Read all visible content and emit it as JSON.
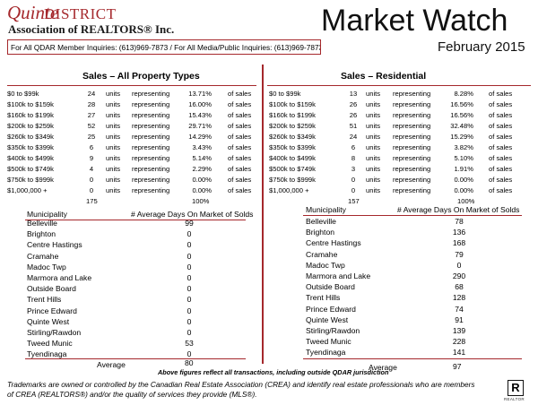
{
  "header": {
    "logo_quinte": "Quinte",
    "logo_district": "DISTRICT",
    "association": "Association of REALTORS® Inc.",
    "title": "Market Watch",
    "subtitle": "February 2015",
    "inquiry": "For All QDAR Member Inquiries: (613)969-7873 / For All Media/Public Inquiries: (613)969-7873"
  },
  "all_property": {
    "title": "Sales – All Property Types",
    "rows": [
      {
        "range": "$0 to $99k",
        "count": "24",
        "units": "units",
        "rep": "representing",
        "pct": "13.71%",
        "of": "of sales"
      },
      {
        "range": "$100k to $159k",
        "count": "28",
        "units": "units",
        "rep": "representing",
        "pct": "16.00%",
        "of": "of sales"
      },
      {
        "range": "$160k to $199k",
        "count": "27",
        "units": "units",
        "rep": "representing",
        "pct": "15.43%",
        "of": "of sales"
      },
      {
        "range": "$200k to $259k",
        "count": "52",
        "units": "units",
        "rep": "representing",
        "pct": "29.71%",
        "of": "of sales"
      },
      {
        "range": "$260k to $349k",
        "count": "25",
        "units": "units",
        "rep": "representing",
        "pct": "14.29%",
        "of": "of sales"
      },
      {
        "range": "$350k to $399k",
        "count": "6",
        "units": "units",
        "rep": "representing",
        "pct": "3.43%",
        "of": "of sales"
      },
      {
        "range": "$400k to $499k",
        "count": "9",
        "units": "units",
        "rep": "representing",
        "pct": "5.14%",
        "of": "of sales"
      },
      {
        "range": "$500k to $749k",
        "count": "4",
        "units": "units",
        "rep": "representing",
        "pct": "2.29%",
        "of": "of sales"
      },
      {
        "range": "$750k to $999k",
        "count": "0",
        "units": "units",
        "rep": "representing",
        "pct": "0.00%",
        "of": "of sales"
      },
      {
        "range": "$1,000,000 +",
        "count": "0",
        "units": "units",
        "rep": "representing",
        "pct": "0.00%",
        "of": "of sales"
      }
    ],
    "total_count": "175",
    "total_pct": "100%",
    "muni_header": "Municipality",
    "days_header": "# Average Days On Market of Solds",
    "municipalities": [
      {
        "name": "Belleville",
        "days": "99"
      },
      {
        "name": "Brighton",
        "days": "0"
      },
      {
        "name": "Centre Hastings",
        "days": "0"
      },
      {
        "name": "Cramahe",
        "days": "0"
      },
      {
        "name": "Madoc Twp",
        "days": "0"
      },
      {
        "name": "Marmora and Lake",
        "days": "0"
      },
      {
        "name": "Outside Board",
        "days": "0"
      },
      {
        "name": "Trent Hills",
        "days": "0"
      },
      {
        "name": "Prince Edward",
        "days": "0"
      },
      {
        "name": "Quinte West",
        "days": "0"
      },
      {
        "name": "Stirling/Rawdon",
        "days": "0"
      },
      {
        "name": "Tweed Munic",
        "days": "53"
      },
      {
        "name": "Tyendinaga",
        "days": "0"
      }
    ],
    "average_label": "Average",
    "average_value": "80"
  },
  "residential": {
    "title": "Sales – Residential",
    "rows": [
      {
        "range": "$0 to $99k",
        "count": "13",
        "units": "units",
        "rep": "representing",
        "pct": "8.28%",
        "of": "of sales"
      },
      {
        "range": "$100k to $159k",
        "count": "26",
        "units": "units",
        "rep": "representing",
        "pct": "16.56%",
        "of": "of sales"
      },
      {
        "range": "$160k to $199k",
        "count": "26",
        "units": "units",
        "rep": "representing",
        "pct": "16.56%",
        "of": "of sales"
      },
      {
        "range": "$200k to $259k",
        "count": "51",
        "units": "units",
        "rep": "representing",
        "pct": "32.48%",
        "of": "of sales"
      },
      {
        "range": "$260k to $349k",
        "count": "24",
        "units": "units",
        "rep": "representing",
        "pct": "15.29%",
        "of": "of sales"
      },
      {
        "range": "$350k to $399k",
        "count": "6",
        "units": "units",
        "rep": "representing",
        "pct": "3.82%",
        "of": "of sales"
      },
      {
        "range": "$400k to $499k",
        "count": "8",
        "units": "units",
        "rep": "representing",
        "pct": "5.10%",
        "of": "of sales"
      },
      {
        "range": "$500k to $749k",
        "count": "3",
        "units": "units",
        "rep": "representing",
        "pct": "1.91%",
        "of": "of sales"
      },
      {
        "range": "$750k to $999k",
        "count": "0",
        "units": "units",
        "rep": "representing",
        "pct": "0.00%",
        "of": "of sales"
      },
      {
        "range": "$1,000,000 +",
        "count": "0",
        "units": "units",
        "rep": "representing",
        "pct": "0.00%",
        "of": "of sales"
      }
    ],
    "total_count": "157",
    "total_pct": "100%",
    "muni_header": "Municipality",
    "days_header": "# Average Days On Market of Solds",
    "municipalities": [
      {
        "name": "Belleville",
        "days": "78"
      },
      {
        "name": "Brighton",
        "days": "136"
      },
      {
        "name": "Centre Hastings",
        "days": "168"
      },
      {
        "name": "Cramahe",
        "days": "79"
      },
      {
        "name": "Madoc Twp",
        "days": "0"
      },
      {
        "name": "Marmora and Lake",
        "days": "290"
      },
      {
        "name": "Outside Board",
        "days": "68"
      },
      {
        "name": "Trent Hills",
        "days": "128"
      },
      {
        "name": "Prince Edward",
        "days": "74"
      },
      {
        "name": "Quinte West",
        "days": "91"
      },
      {
        "name": "Stirling/Rawdon",
        "days": "139"
      },
      {
        "name": "Tweed Munic",
        "days": "228"
      },
      {
        "name": "Tyendinaga",
        "days": "141"
      }
    ],
    "average_label": "Average",
    "average_value": "97"
  },
  "footnote": "Above figures reflect all transactions, including outside QDAR jurisdiction",
  "disclaimer": "Trademarks are owned or controlled by the Canadian Real Estate Association (CREA) and identify real estate professionals who are members of CREA (REALTORS®) and/or the quality of services they provide (MLS®).",
  "realtor_logo": {
    "letter": "R",
    "caption": "REALTOR"
  },
  "colors": {
    "accent": "#a5282c"
  }
}
